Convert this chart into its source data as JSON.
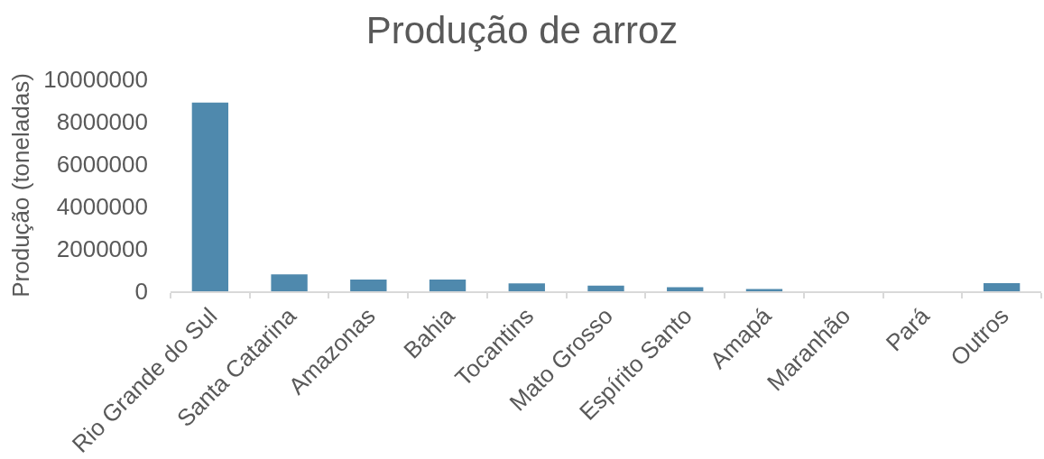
{
  "chart_data": {
    "type": "bar",
    "title": "Produção de arroz",
    "ylabel": "Produção (toneladas)",
    "categories": [
      "Rio Grande do Sul",
      "Santa Catarina",
      "Amazonas",
      "Bahia",
      "Tocantins",
      "Mato Grosso",
      "Espírito Santo",
      "Amapá",
      "Maranhão",
      "Pará",
      "Outros"
    ],
    "values": [
      8900000,
      800000,
      550000,
      550000,
      370000,
      270000,
      190000,
      110000,
      null,
      null,
      380000
    ],
    "color": "#4f89ad",
    "ylim": [
      0,
      10000000
    ],
    "yticks": [
      0,
      2000000,
      4000000,
      6000000,
      8000000,
      10000000
    ]
  }
}
